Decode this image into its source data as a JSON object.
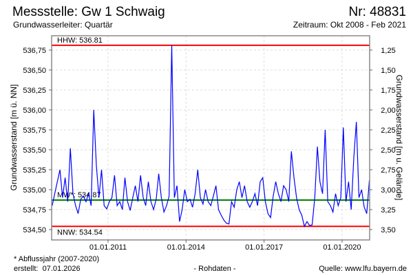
{
  "header": {
    "title": "Messstelle: Gw 1 Schwaig",
    "number": "Nr: 48831",
    "aquifer": "Grundwasserleiter: Quartär",
    "period": "Zeitraum: Okt 2008 - Feb 2021"
  },
  "footer": {
    "note": "* Abflussjahr (2007-2020)",
    "created": "erstellt:  07.01.2026",
    "rawdata": "- Rohdaten -",
    "source": "Quelle: www.lfu.bayern.de"
  },
  "colors": {
    "series": "#0000ff",
    "extreme": "#ff0000",
    "mean": "#008000",
    "source": "#0000ff"
  },
  "chart_data": {
    "type": "line",
    "ylabel": "Grundwasserstand [m ü. NN]",
    "ylabel_right": "Grundwasserstand [m u. Gelände]",
    "ylim": [
      534.37,
      536.93
    ],
    "xlim": [
      2008.83,
      2021.06
    ],
    "ground_level": 538.0,
    "grid": true,
    "yticks": [
      534.5,
      534.75,
      535.0,
      535.25,
      535.5,
      535.75,
      536.0,
      536.25,
      536.5,
      536.75
    ],
    "ytick_labels": [
      "534,50",
      "534,75",
      "535,00",
      "535,25",
      "535,50",
      "535,75",
      "536,00",
      "536,25",
      "536,50",
      "536,75"
    ],
    "yticks_right": [
      1.25,
      1.5,
      1.75,
      2.0,
      2.25,
      2.5,
      2.75,
      3.0,
      3.25,
      3.5
    ],
    "ytick_labels_right": [
      "1,25",
      "1,50",
      "1,75",
      "2,00",
      "2,25",
      "2,50",
      "2,75",
      "3,00",
      "3,25",
      "3,50"
    ],
    "xticks": [
      2011,
      2014,
      2017,
      2020
    ],
    "xtick_labels": [
      "01.01.2011",
      "01.01.2014",
      "01.01.2017",
      "01.01.2020"
    ],
    "reference_lines": [
      {
        "name": "HHW",
        "label": "HHW: 536.81",
        "value": 536.81
      },
      {
        "name": "MW",
        "label": "MW*: 534.87",
        "value": 534.87
      },
      {
        "name": "NNW",
        "label": "NNW: 534.54",
        "value": 534.54
      }
    ],
    "series": [
      {
        "name": "Grundwasserstand",
        "x_start": 2008.85,
        "x_step": 0.1,
        "values": [
          534.8,
          534.95,
          535.1,
          535.25,
          534.9,
          535.15,
          534.85,
          535.52,
          534.95,
          534.8,
          534.7,
          534.88,
          534.92,
          534.85,
          534.95,
          534.8,
          536.0,
          535.3,
          534.9,
          535.25,
          534.8,
          534.76,
          534.85,
          534.9,
          535.18,
          534.8,
          534.85,
          534.75,
          535.15,
          534.85,
          534.74,
          534.9,
          535.05,
          534.85,
          535.18,
          534.9,
          534.8,
          535.1,
          534.85,
          534.75,
          534.88,
          535.2,
          534.9,
          534.72,
          534.8,
          534.92,
          536.81,
          534.9,
          535.05,
          534.6,
          534.75,
          535.0,
          534.85,
          534.88,
          534.78,
          534.95,
          535.25,
          534.9,
          534.82,
          535.0,
          534.85,
          534.8,
          534.92,
          535.05,
          534.75,
          534.68,
          534.62,
          534.58,
          534.57,
          534.85,
          534.78,
          535.0,
          535.1,
          534.9,
          535.05,
          534.85,
          534.78,
          534.85,
          534.95,
          534.8,
          535.1,
          535.15,
          534.85,
          534.7,
          534.65,
          534.92,
          535.1,
          534.95,
          534.85,
          535.05,
          535.0,
          534.85,
          535.48,
          535.15,
          534.9,
          534.75,
          534.68,
          534.54,
          534.6,
          534.55,
          534.56,
          534.9,
          535.54,
          535.1,
          534.95,
          535.75,
          534.85,
          534.8,
          534.72,
          534.95,
          534.8,
          534.9,
          535.78,
          534.85,
          535.1,
          534.75,
          535.4,
          535.85,
          534.9,
          535.0,
          534.78,
          534.7,
          535.12
        ]
      }
    ]
  }
}
